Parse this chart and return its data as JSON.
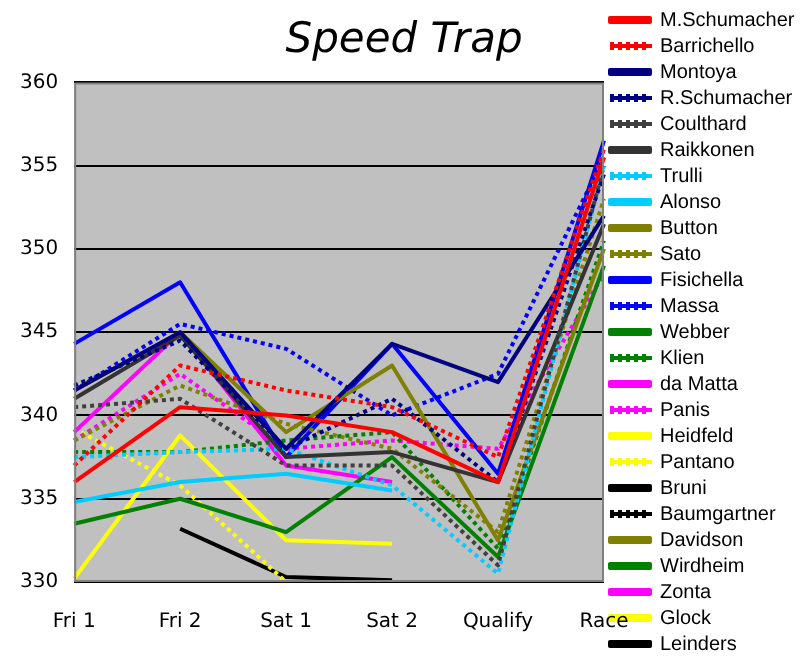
{
  "chart_data": {
    "type": "line",
    "title": "Speed Trap",
    "categories": [
      "Fri 1",
      "Fri 2",
      "Sat 1",
      "Sat 2",
      "Qualify",
      "Race"
    ],
    "ylim": [
      330,
      360
    ],
    "yticks": [
      330,
      335,
      340,
      345,
      350,
      355,
      360
    ],
    "grid": "y",
    "legend": "right",
    "marker": "none",
    "series": [
      {
        "name": "M.Schumacher",
        "color": "#ff0000",
        "line_style": "solid",
        "values": [
          336,
          340.5,
          340,
          339,
          336,
          355.5
        ]
      },
      {
        "name": "Barrichello",
        "color": "#ff0000",
        "line_style": "dotted",
        "values": [
          337,
          343,
          341.5,
          340.5,
          337.5,
          356
        ]
      },
      {
        "name": "Montoya",
        "color": "#000080",
        "line_style": "solid",
        "values": [
          341.5,
          345,
          338,
          344.3,
          342,
          352
        ]
      },
      {
        "name": "R.Schumacher",
        "color": "#000080",
        "line_style": "dotted",
        "values": [
          341.8,
          344.5,
          338,
          341,
          336,
          354.5
        ]
      },
      {
        "name": "Coulthard",
        "color": "#404040",
        "line_style": "dotted",
        "values": [
          340.5,
          341,
          337,
          337,
          331,
          355
        ]
      },
      {
        "name": "Raikkonen",
        "color": "#333333",
        "line_style": "solid",
        "values": [
          341,
          344.8,
          337.5,
          337.8,
          336,
          351.5
        ]
      },
      {
        "name": "Trulli",
        "color": "#00ccff",
        "line_style": "dotted",
        "values": [
          337.5,
          337.8,
          338,
          335.8,
          330.5,
          355
        ]
      },
      {
        "name": "Alonso",
        "color": "#00ccff",
        "line_style": "solid",
        "values": [
          334.8,
          336,
          336.5,
          335.5,
          null,
          null
        ]
      },
      {
        "name": "Button",
        "color": "#808000",
        "line_style": "solid",
        "values": [
          341.5,
          345,
          339,
          343,
          332.5,
          350
        ]
      },
      {
        "name": "Sato",
        "color": "#808000",
        "line_style": "dotted",
        "values": [
          338.5,
          341.8,
          339.5,
          338,
          333,
          353
        ]
      },
      {
        "name": "Fisichella",
        "color": "#0000ff",
        "line_style": "solid",
        "values": [
          344.3,
          348,
          337.5,
          344.3,
          336.5,
          356.5
        ]
      },
      {
        "name": "Massa",
        "color": "#0000ff",
        "line_style": "dotted",
        "values": [
          341.5,
          345.5,
          344,
          340,
          342.5,
          355.5
        ]
      },
      {
        "name": "Webber",
        "color": "#008000",
        "line_style": "solid",
        "values": [
          333.5,
          335,
          333,
          337.5,
          331.5,
          349
        ]
      },
      {
        "name": "Klien",
        "color": "#008000",
        "line_style": "dotted",
        "values": [
          337.8,
          337.8,
          338.5,
          339,
          332,
          350.5
        ]
      },
      {
        "name": "da Matta",
        "color": "#ff00ff",
        "line_style": "solid",
        "values": [
          339,
          345,
          337,
          336,
          null,
          null
        ]
      },
      {
        "name": "Panis",
        "color": "#ff00ff",
        "line_style": "dotted",
        "values": [
          338.5,
          342.5,
          338,
          338.5,
          338,
          348.5
        ]
      },
      {
        "name": "Heidfeld",
        "color": "#ffff00",
        "line_style": "solid",
        "values": [
          330.2,
          338.8,
          332.5,
          332.3,
          null,
          null
        ]
      },
      {
        "name": "Pantano",
        "color": "#ffff00",
        "line_style": "dotted",
        "values": [
          339.2,
          335.8,
          330,
          null,
          null,
          null
        ]
      },
      {
        "name": "Bruni",
        "color": "#000000",
        "line_style": "solid",
        "values": [
          null,
          333.2,
          330.3,
          330.1,
          null,
          null
        ]
      },
      {
        "name": "Baumgartner",
        "color": "#000000",
        "line_style": "dotted",
        "values": [
          null,
          null,
          null,
          null,
          null,
          null
        ]
      },
      {
        "name": "Davidson",
        "color": "#808000",
        "line_style": "solid",
        "values": [
          null,
          null,
          null,
          null,
          null,
          null
        ]
      },
      {
        "name": "Wirdheim",
        "color": "#008000",
        "line_style": "solid",
        "values": [
          null,
          null,
          null,
          null,
          null,
          null
        ]
      },
      {
        "name": "Zonta",
        "color": "#ff00ff",
        "line_style": "solid",
        "values": [
          null,
          null,
          null,
          null,
          null,
          null
        ]
      },
      {
        "name": "Glock",
        "color": "#ffff00",
        "line_style": "solid",
        "values": [
          null,
          null,
          null,
          null,
          null,
          null
        ]
      },
      {
        "name": "Leinders",
        "color": "#000000",
        "line_style": "solid",
        "values": [
          null,
          null,
          null,
          null,
          null,
          null
        ]
      }
    ]
  }
}
